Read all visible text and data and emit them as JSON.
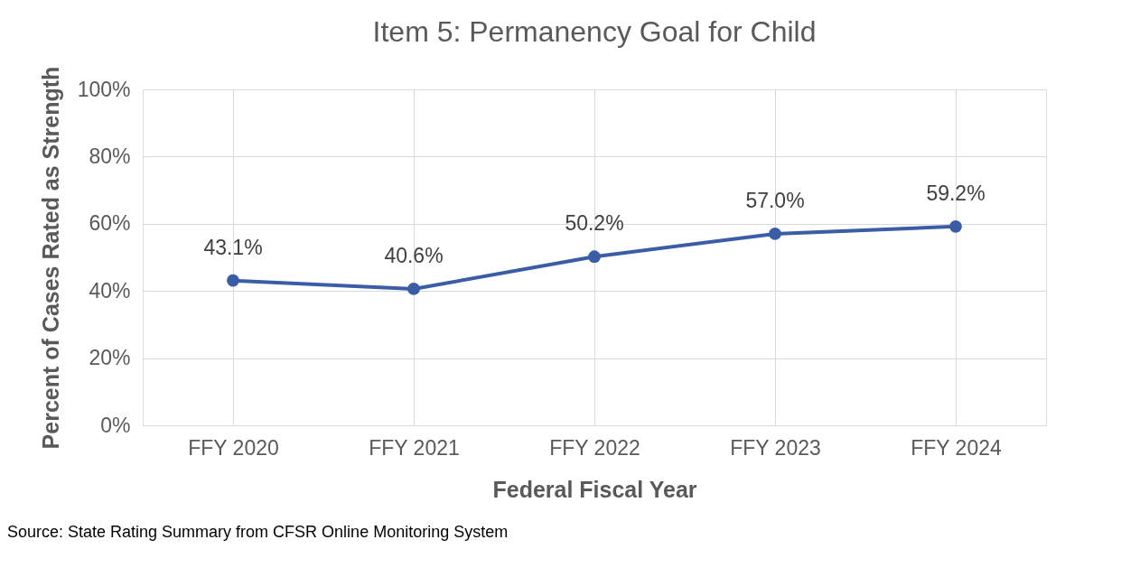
{
  "chart_data": {
    "type": "line",
    "title": "Item 5: Permanency Goal for Child",
    "xlabel": "Federal Fiscal Year",
    "ylabel": "Percent of Cases Rated as Strength",
    "categories": [
      "FFY 2020",
      "FFY 2021",
      "FFY 2022",
      "FFY 2023",
      "FFY 2024"
    ],
    "series": [
      {
        "color": "#3a5da6",
        "values": [
          43.1,
          40.6,
          50.2,
          57.0,
          59.2
        ],
        "value_labels": [
          "43.1%",
          "40.6%",
          "50.2%",
          "57.0%",
          "59.2%"
        ]
      }
    ],
    "ylim": [
      0,
      100
    ],
    "yticks": [
      {
        "value": 0,
        "label": "0%"
      },
      {
        "value": 20,
        "label": "20%"
      },
      {
        "value": 40,
        "label": "40%"
      },
      {
        "value": 60,
        "label": "60%"
      },
      {
        "value": 80,
        "label": "80%"
      },
      {
        "value": 100,
        "label": "100%"
      }
    ],
    "grid": true,
    "marker": "circle",
    "line_style": "solid",
    "legend": false,
    "annotations": [
      "Source: State Rating Summary from CFSR Online Monitoring System"
    ]
  }
}
